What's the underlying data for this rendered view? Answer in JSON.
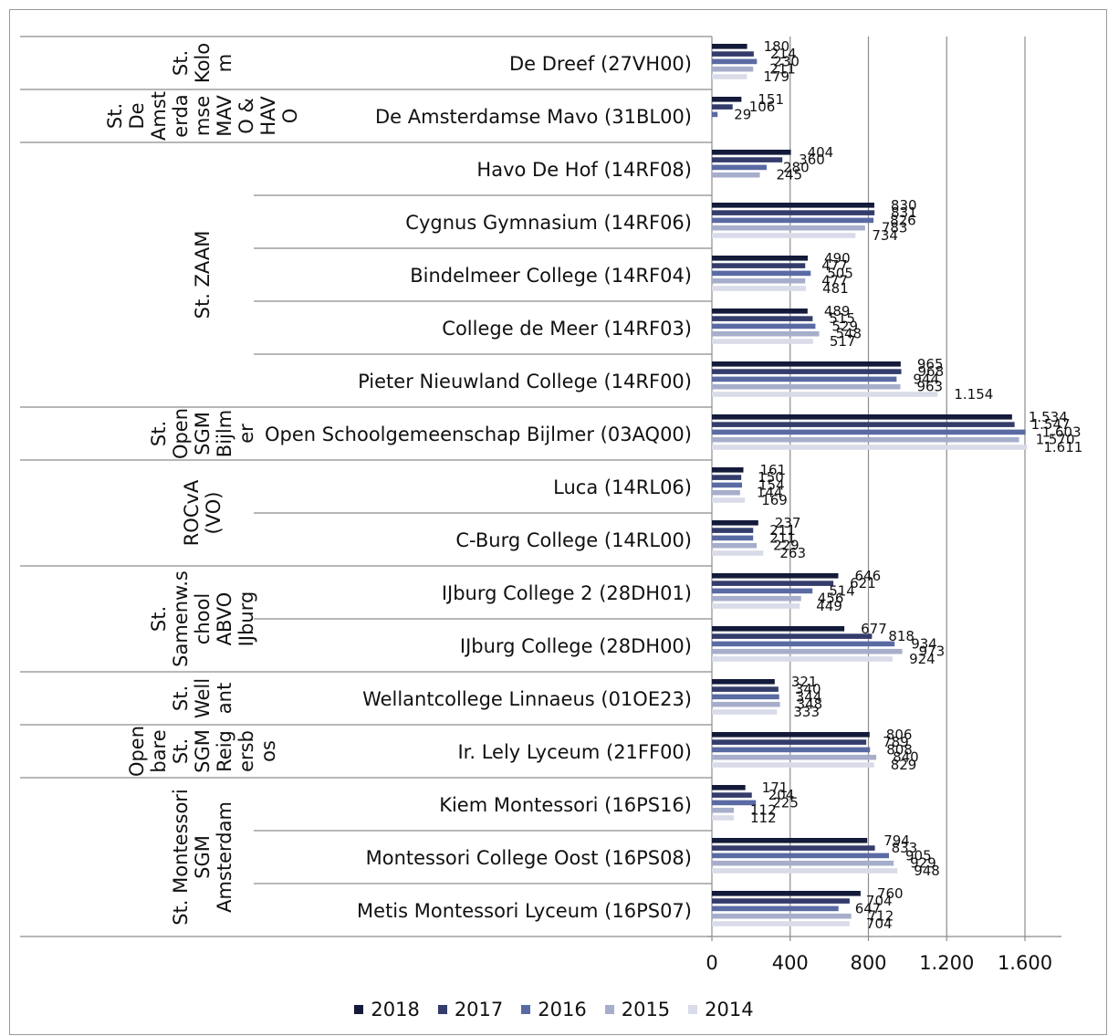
{
  "chart_data": {
    "type": "bar",
    "orientation": "horizontal",
    "title": "",
    "xlabel": "",
    "ylabel": "",
    "xlim": [
      0,
      1600
    ],
    "x_ticks": [
      "0",
      "400",
      "800",
      "1.200",
      "1.600"
    ],
    "x_tick_values": [
      0,
      400,
      800,
      1200,
      1600
    ],
    "grid": true,
    "legend_position": "bottom",
    "series": [
      {
        "name": "2018",
        "color": "#131a3a"
      },
      {
        "name": "2017",
        "color": "#333c6a"
      },
      {
        "name": "2016",
        "color": "#5a6aa3"
      },
      {
        "name": "2015",
        "color": "#a7aecb"
      },
      {
        "name": "2014",
        "color": "#d9dce8"
      }
    ],
    "groups": [
      {
        "label": [
          "St.",
          "Kolo",
          "m"
        ],
        "schools": [
          {
            "name": "De Dreef (27VH00)",
            "values": [
              180,
              214,
              230,
              211,
              179
            ],
            "labels": [
              "180",
              "214",
              "230",
              "211",
              "179"
            ]
          }
        ]
      },
      {
        "label": [
          "St.",
          "De",
          "Amst",
          "erda",
          "mse",
          "MAV",
          "O &",
          "HAV",
          "O"
        ],
        "schools": [
          {
            "name": "De Amsterdamse Mavo (31BL00)",
            "values": [
              151,
              106,
              29,
              null,
              null
            ],
            "labels": [
              "151",
              "106",
              "29",
              "",
              ""
            ]
          }
        ]
      },
      {
        "label": [
          "St. ZAAM"
        ],
        "schools": [
          {
            "name": "Havo De Hof (14RF08)",
            "values": [
              404,
              360,
              280,
              245,
              null
            ],
            "labels": [
              "404",
              "360",
              "280",
              "245",
              ""
            ]
          },
          {
            "name": "Cygnus Gymnasium (14RF06)",
            "values": [
              830,
              831,
              826,
              783,
              734
            ],
            "labels": [
              "830",
              "831",
              "826",
              "783",
              "734"
            ]
          },
          {
            "name": "Bindelmeer College (14RF04)",
            "values": [
              490,
              477,
              505,
              477,
              481
            ],
            "labels": [
              "490",
              "477",
              "505",
              "477",
              "481"
            ]
          },
          {
            "name": "College de Meer (14RF03)",
            "values": [
              489,
              515,
              529,
              548,
              517
            ],
            "labels": [
              "489",
              "515",
              "529",
              "548",
              "517"
            ]
          },
          {
            "name": "Pieter Nieuwland College (14RF00)",
            "values": [
              965,
              968,
              944,
              963,
              1154
            ],
            "labels": [
              "965",
              "968",
              "944",
              "963",
              "1.154"
            ]
          }
        ]
      },
      {
        "label": [
          "St.",
          "Open",
          "SGM",
          "Bijlm",
          "er"
        ],
        "schools": [
          {
            "name": "Open Schoolgemeenschap Bijlmer (03AQ00)",
            "values": [
              1534,
              1547,
              1603,
              1570,
              1611
            ],
            "labels": [
              "1.534",
              "1.547",
              "1.603",
              "1.570",
              "1.611"
            ]
          }
        ]
      },
      {
        "label": [
          "ROCvA",
          "(VO)"
        ],
        "schools": [
          {
            "name": "Luca (14RL06)",
            "values": [
              161,
              150,
              154,
              144,
              169
            ],
            "labels": [
              "161",
              "150",
              "154",
              "144",
              "169"
            ]
          },
          {
            "name": "C-Burg College (14RL00)",
            "values": [
              237,
              211,
              211,
              229,
              263
            ],
            "labels": [
              "237",
              "211",
              "211",
              "229",
              "263"
            ]
          }
        ]
      },
      {
        "label": [
          "St.",
          "Samenw.s",
          "chool",
          "ABVO",
          "IJburg"
        ],
        "schools": [
          {
            "name": "IJburg  College 2 (28DH01)",
            "values": [
              646,
              621,
              514,
              456,
              449
            ],
            "labels": [
              "646",
              "621",
              "514",
              "456",
              "449"
            ]
          },
          {
            "name": "IJburg College (28DH00)",
            "values": [
              677,
              818,
              934,
              973,
              924
            ],
            "labels": [
              "677",
              "818",
              "934",
              "973",
              "924"
            ]
          }
        ]
      },
      {
        "label": [
          "St.",
          "Well",
          "ant"
        ],
        "schools": [
          {
            "name": "Wellantcollege Linnaeus (01OE23)",
            "values": [
              321,
              340,
              344,
              348,
              333
            ],
            "labels": [
              "321",
              "340",
              "344",
              "348",
              "333"
            ]
          }
        ]
      },
      {
        "label": [
          "Open",
          "bare",
          "St.",
          "SGM",
          "Reig",
          "ersb",
          "os"
        ],
        "schools": [
          {
            "name": "Ir. Lely Lyceum (21FF00)",
            "values": [
              806,
              789,
              808,
              840,
              829
            ],
            "labels": [
              "806",
              "789",
              "808",
              "840",
              "829"
            ]
          }
        ]
      },
      {
        "label": [
          "St. Montessori",
          "SGM",
          "Amsterdam"
        ],
        "schools": [
          {
            "name": "Kiem Montessori (16PS16)",
            "values": [
              171,
              204,
              225,
              112,
              112
            ],
            "labels": [
              "171",
              "204",
              "225",
              "112",
              "112"
            ]
          },
          {
            "name": "Montessori College Oost (16PS08)",
            "values": [
              794,
              833,
              905,
              929,
              948
            ],
            "labels": [
              "794",
              "833",
              "905",
              "929",
              "948"
            ]
          },
          {
            "name": "Metis Montessori Lyceum (16PS07)",
            "values": [
              760,
              704,
              647,
              712,
              704
            ],
            "labels": [
              "760",
              "704",
              "647",
              "712",
              "704"
            ]
          }
        ]
      }
    ]
  }
}
